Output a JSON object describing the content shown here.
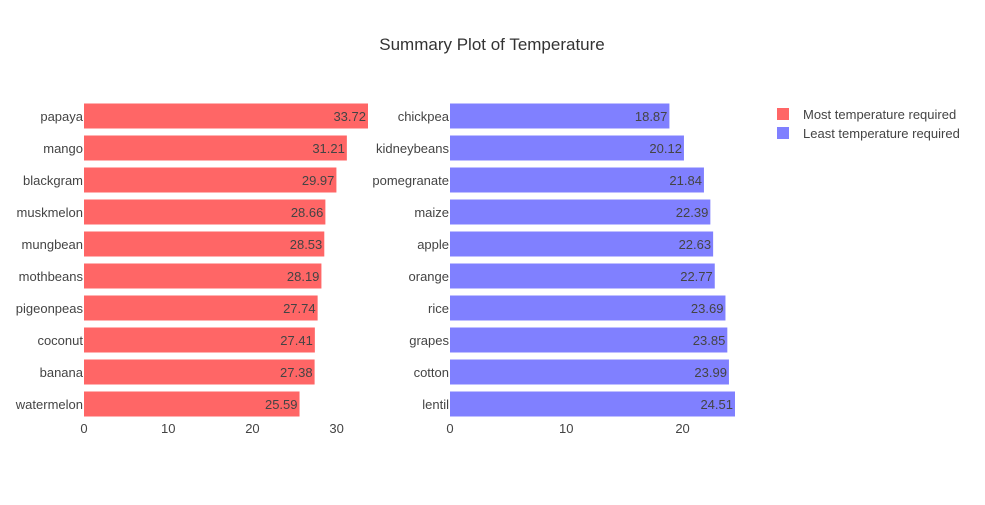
{
  "title": "Summary Plot of Temperature",
  "colors": {
    "left": "#ff6666",
    "right": "#8080ff"
  },
  "legend": {
    "position": "top-right",
    "items": [
      {
        "label": "Most temperature required",
        "color": "#ff6666"
      },
      {
        "label": "Least temperature required",
        "color": "#8080ff"
      }
    ]
  },
  "chart_data": [
    {
      "type": "bar",
      "orientation": "horizontal",
      "series_name": "Most temperature required",
      "categories": [
        "papaya",
        "mango",
        "blackgram",
        "muskmelon",
        "mungbean",
        "mothbeans",
        "pigeonpeas",
        "coconut",
        "banana",
        "watermelon"
      ],
      "values": [
        33.72,
        31.21,
        29.97,
        28.66,
        28.53,
        28.19,
        27.74,
        27.41,
        27.38,
        25.59
      ],
      "value_labels": [
        "33.72",
        "31.21",
        "29.97",
        "28.66",
        "28.53",
        "28.19",
        "27.74",
        "27.41",
        "27.38",
        "25.59"
      ],
      "xlim": [
        0,
        33.72
      ],
      "xticks": [
        0,
        10,
        20,
        30
      ],
      "xtick_labels": [
        "0",
        "10",
        "20",
        "30"
      ],
      "grid": false
    },
    {
      "type": "bar",
      "orientation": "horizontal",
      "series_name": "Least temperature required",
      "categories": [
        "chickpea",
        "kidneybeans",
        "pomegranate",
        "maize",
        "apple",
        "orange",
        "rice",
        "grapes",
        "cotton",
        "lentil"
      ],
      "values": [
        18.87,
        20.12,
        21.84,
        22.39,
        22.63,
        22.77,
        23.69,
        23.85,
        23.99,
        24.51
      ],
      "value_labels": [
        "18.87",
        "20.12",
        "21.84",
        "22.39",
        "22.63",
        "22.77",
        "23.69",
        "23.85",
        "23.99",
        "24.51"
      ],
      "xlim": [
        0,
        24.51
      ],
      "xticks": [
        0,
        10,
        20
      ],
      "xtick_labels": [
        "0",
        "10",
        "20"
      ],
      "grid": false
    }
  ]
}
